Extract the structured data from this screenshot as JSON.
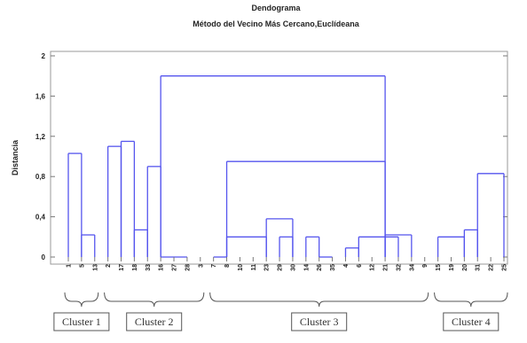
{
  "chart_data": {
    "type": "dendrogram",
    "title": "Dendograma",
    "subtitle": "Método del Vecino Más Cercano,Euclídeana",
    "ylabel": "Distancia",
    "xlabel": "",
    "ylim": [
      0,
      2
    ],
    "yticks": [
      0,
      0.4,
      0.8,
      1.2,
      1.6,
      2
    ],
    "ytick_labels": [
      "0",
      "0,4",
      "0,8",
      "1,2",
      "1,6",
      "2"
    ],
    "grid": false,
    "line_color": "#5555ee",
    "leaves": [
      "1",
      "5",
      "13",
      "2",
      "17",
      "18",
      "33",
      "16",
      "27",
      "28",
      "3",
      "7",
      "8",
      "10",
      "11",
      "23",
      "29",
      "30",
      "14",
      "26",
      "35",
      "4",
      "6",
      "12",
      "21",
      "32",
      "34",
      "9",
      "15",
      "19",
      "20",
      "31",
      "22",
      "25"
    ],
    "merges": [
      {
        "left": [
          0
        ],
        "right": [
          1
        ],
        "height": 1.03
      },
      {
        "left": [
          1
        ],
        "right": [
          2
        ],
        "height": 0.22
      },
      {
        "left": [
          3
        ],
        "right": [
          4
        ],
        "height": 1.1
      },
      {
        "left": [
          4
        ],
        "right": [
          5
        ],
        "height": 1.15
      },
      {
        "left": [
          5
        ],
        "right": [
          6
        ],
        "height": 0.27
      },
      {
        "left": [
          6
        ],
        "right": [
          7
        ],
        "height": 0.9
      },
      {
        "left": [
          7
        ],
        "right": [
          9
        ],
        "height": 0.0
      },
      {
        "left": [
          11
        ],
        "right": [
          12
        ],
        "height": 0.0
      },
      {
        "left": [
          12
        ],
        "right": [
          15
        ],
        "height": 0.2
      },
      {
        "left": [
          15
        ],
        "right": [
          17
        ],
        "height": 0.38
      },
      {
        "left": [
          16
        ],
        "right": [
          17
        ],
        "height": 0.2
      },
      {
        "left": [
          18
        ],
        "right": [
          19
        ],
        "height": 0.2
      },
      {
        "left": [
          19
        ],
        "right": [
          20
        ],
        "height": 0.0
      },
      {
        "left": [
          21
        ],
        "right": [
          22
        ],
        "height": 0.09
      },
      {
        "left": [
          22
        ],
        "right": [
          25
        ],
        "height": 0.2
      },
      {
        "left": [
          24
        ],
        "right": [
          26
        ],
        "height": 0.22
      },
      {
        "left": [
          28
        ],
        "right": [
          30
        ],
        "height": 0.2
      },
      {
        "left": [
          30
        ],
        "right": [
          31
        ],
        "height": 0.27
      },
      {
        "left": [
          31
        ],
        "right": [
          33
        ],
        "height": 0.83
      },
      {
        "left": [
          12
        ],
        "right": [
          24
        ],
        "height": 0.95
      },
      {
        "left": [
          7
        ],
        "right": [
          24
        ],
        "height": 1.8
      }
    ],
    "clusters": [
      {
        "label": "Cluster 1",
        "leaves": [
          0,
          2
        ]
      },
      {
        "label": "Cluster 2",
        "leaves": [
          3,
          10
        ]
      },
      {
        "label": "Cluster 3",
        "leaves": [
          11,
          27
        ]
      },
      {
        "label": "Cluster 4",
        "leaves": [
          28,
          33
        ]
      }
    ]
  }
}
